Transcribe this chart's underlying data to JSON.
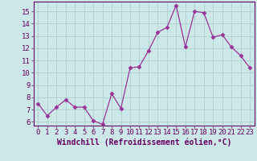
{
  "x": [
    0,
    1,
    2,
    3,
    4,
    5,
    6,
    7,
    8,
    9,
    10,
    11,
    12,
    13,
    14,
    15,
    16,
    17,
    18,
    19,
    20,
    21,
    22,
    23
  ],
  "y": [
    7.5,
    6.5,
    7.2,
    7.8,
    7.2,
    7.2,
    6.1,
    5.8,
    8.3,
    7.1,
    10.4,
    10.5,
    11.8,
    13.3,
    13.7,
    15.5,
    12.1,
    15.0,
    14.9,
    12.9,
    13.1,
    12.1,
    11.4,
    10.4
  ],
  "line_color": "#993399",
  "marker": "D",
  "marker_size": 2.5,
  "bg_color": "#cce8e8",
  "grid_color": "#aacccc",
  "axis_color": "#660066",
  "tick_color": "#660066",
  "xlabel": "Windchill (Refroidissement éolien,°C)",
  "ylim": [
    5.7,
    15.8
  ],
  "xlim": [
    -0.5,
    23.5
  ],
  "yticks": [
    6,
    7,
    8,
    9,
    10,
    11,
    12,
    13,
    14,
    15
  ],
  "xticks": [
    0,
    1,
    2,
    3,
    4,
    5,
    6,
    7,
    8,
    9,
    10,
    11,
    12,
    13,
    14,
    15,
    16,
    17,
    18,
    19,
    20,
    21,
    22,
    23
  ],
  "font_size": 6.5,
  "label_font_size": 7.0
}
